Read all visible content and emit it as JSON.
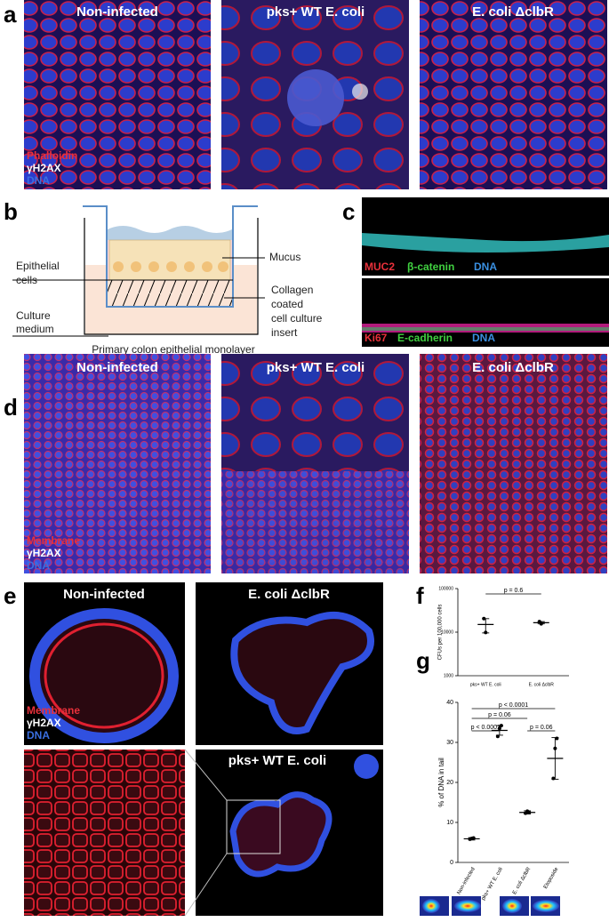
{
  "panels": {
    "a": {
      "label": "a",
      "titles": [
        "Non-infected",
        "pks+ WT E. coli",
        "E. coli ΔclbR"
      ],
      "legend": [
        "Phalloidin",
        "γH2AX",
        "DNA"
      ]
    },
    "b": {
      "label": "b",
      "epithelial": [
        "Epithelial",
        "cells"
      ],
      "medium": [
        "Culture",
        "medium"
      ],
      "mucus": "Mucus",
      "insert": [
        "Collagen",
        "coated",
        "cell culture",
        "insert"
      ],
      "caption": "Primary colon epithelial monolayer"
    },
    "c": {
      "label": "c",
      "legend_top": [
        "MUC2",
        "β-catenin",
        "DNA"
      ],
      "legend_bottom": [
        "Ki67",
        "E-cadherin",
        "DNA"
      ]
    },
    "d": {
      "label": "d",
      "titles": [
        "Non-infected",
        "pks+ WT E. coli",
        "E. coli ΔclbR"
      ],
      "legend": [
        "Membrane",
        "γH2AX",
        "DNA"
      ]
    },
    "e": {
      "label": "e",
      "titles": [
        "Non-infected",
        "E. coli ΔclbR",
        "pks+ WT E. coli"
      ],
      "legend": [
        "Membrane",
        "γH2AX",
        "DNA"
      ]
    },
    "f": {
      "label": "f"
    },
    "g": {
      "label": "g"
    }
  },
  "chart_data": [
    {
      "type": "dot",
      "y_label": "CFUs per 100,000 cells",
      "categories": [
        "pks+ WT E. coli",
        "E. coli ΔclbR"
      ],
      "points": [
        [
          20500,
          9800
        ],
        [
          17500,
          15500
        ]
      ],
      "means": [
        15000,
        16500
      ],
      "errors": [
        5400,
        1000
      ],
      "log": true,
      "ylim": [
        1000,
        100000
      ],
      "yticks": [
        1000,
        10000,
        100000
      ],
      "annotations": [
        "p = 0.6"
      ]
    },
    {
      "type": "dot",
      "y_label": "% of DNA in tail",
      "categories": [
        "Non-infected",
        "pks+ WT E. coli",
        "E. coli ΔclbR",
        "Etoposide"
      ],
      "points": [
        [
          5.8,
          6.0,
          6.1
        ],
        [
          31.5,
          33.5,
          34.2
        ],
        [
          12.3,
          12.8,
          12.5
        ],
        [
          21,
          28.5,
          31
        ]
      ],
      "means": [
        5.9,
        33,
        12.5,
        26
      ],
      "errors": [
        0.3,
        1.2,
        0.4,
        5.2
      ],
      "log": false,
      "ylim": [
        0,
        40
      ],
      "yticks": [
        0,
        10,
        20,
        30,
        40
      ],
      "annotations": [
        "p < 0.0001",
        "p = 0.06",
        "p < 0.0001",
        "p = 0.06"
      ]
    }
  ]
}
